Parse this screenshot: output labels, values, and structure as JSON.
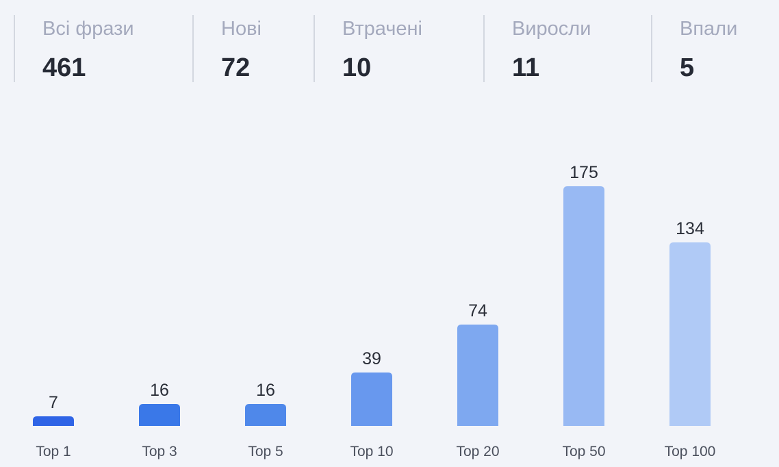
{
  "stats": [
    {
      "label": "Всі фрази",
      "value": "461"
    },
    {
      "label": "Нові",
      "value": "72"
    },
    {
      "label": "Втрачені",
      "value": "10"
    },
    {
      "label": "Виросли",
      "value": "11"
    },
    {
      "label": "Впали",
      "value": "5"
    }
  ],
  "chart_data": {
    "type": "bar",
    "categories": [
      "Top 1",
      "Top 3",
      "Top 5",
      "Top 10",
      "Top 20",
      "Top 50",
      "Top 100"
    ],
    "values": [
      7,
      16,
      16,
      39,
      74,
      175,
      134
    ],
    "colors": [
      "#2f64e6",
      "#3a78e8",
      "#4f88ea",
      "#6898ee",
      "#7ea8f0",
      "#98b9f3",
      "#b0caf6"
    ],
    "title": "",
    "xlabel": "",
    "ylabel": "",
    "ylim": [
      0,
      175
    ],
    "grid": false,
    "legend": "none"
  }
}
